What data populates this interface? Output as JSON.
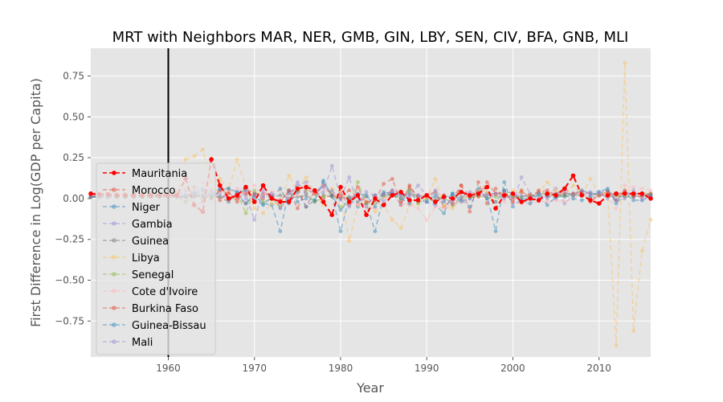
{
  "chart_data": {
    "type": "line",
    "title": "MRT with Neighbors MAR, NER, GMB, GIN, LBY, SEN, CIV, BFA, GNB, MLI",
    "xlabel": "Year",
    "ylabel": "First Difference in Log(GDP per Capita)",
    "xlim": [
      1951,
      2016
    ],
    "ylim": [
      -0.97,
      0.92
    ],
    "xticks": [
      1960,
      1970,
      1980,
      1990,
      2000,
      2010
    ],
    "yticks": [
      -0.75,
      -0.5,
      -0.25,
      0.0,
      0.25,
      0.5,
      0.75
    ],
    "xtick_labels": [
      "1960",
      "1970",
      "1980",
      "1990",
      "2000",
      "2010"
    ],
    "ytick_labels": [
      "−0.75",
      "−0.50",
      "−0.25",
      "0.00",
      "0.25",
      "0.50",
      "0.75"
    ],
    "vline_x": 1960,
    "grid": true,
    "legend_position": "left",
    "series": [
      {
        "name": "Mauritania",
        "color": "#ff0000",
        "highlight": true,
        "start": 1951,
        "values": [
          0.03,
          0.025,
          0.025,
          0.02,
          0.02,
          0.02,
          0.02,
          0.02,
          0.02,
          0.02,
          0.02,
          0.12,
          -0.04,
          -0.08,
          0.24,
          0.08,
          0.0,
          0.02,
          0.07,
          -0.02,
          0.08,
          0.0,
          -0.02,
          -0.02,
          0.06,
          0.07,
          0.05,
          -0.02,
          -0.1,
          0.07,
          -0.02,
          0.02,
          -0.1,
          0.0,
          -0.04,
          0.02,
          0.04,
          -0.01,
          -0.01,
          0.02,
          -0.02,
          0.01,
          0.0,
          0.04,
          0.02,
          0.03,
          0.07,
          -0.06,
          0.02,
          0.03,
          -0.02,
          0.0,
          -0.01,
          0.03,
          0.02,
          0.06,
          0.14,
          0.02,
          -0.01,
          -0.03,
          0.02,
          0.03,
          0.03,
          0.03,
          0.03,
          0.0
        ]
      },
      {
        "name": "Morocco",
        "color": "#e24a33",
        "highlight": false,
        "start": 1951,
        "values": [
          0.02,
          0.02,
          0.02,
          0.02,
          0.02,
          0.02,
          0.02,
          0.02,
          0.02,
          0.02,
          0.02,
          -0.02,
          0.07,
          -0.02,
          0.05,
          -0.01,
          0.04,
          -0.02,
          0.06,
          0.03,
          0.03,
          0.02,
          -0.01,
          0.04,
          0.06,
          -0.05,
          0.05,
          0.0,
          0.02,
          0.03,
          -0.04,
          0.07,
          -0.03,
          0.0,
          0.02,
          0.05,
          -0.04,
          0.08,
          0.0,
          0.02,
          0.04,
          -0.05,
          0.0,
          0.08,
          -0.08,
          0.1,
          -0.03,
          0.06,
          0.01,
          0.0,
          0.05,
          0.0,
          0.05,
          0.02,
          0.03,
          0.06,
          0.02,
          0.04,
          0.03,
          0.02,
          0.04,
          0.02,
          0.04,
          0.01,
          0.03,
          0.02
        ]
      },
      {
        "name": "Niger",
        "color": "#348abd",
        "highlight": false,
        "start": 1951,
        "values": [
          0.01,
          0.01,
          0.01,
          0.01,
          0.01,
          0.01,
          0.01,
          0.01,
          0.01,
          0.01,
          0.01,
          0.02,
          0.03,
          0.05,
          0.0,
          0.05,
          0.06,
          0.03,
          -0.03,
          0.02,
          -0.03,
          -0.04,
          -0.2,
          0.05,
          -0.02,
          0.0,
          -0.01,
          0.1,
          0.02,
          -0.2,
          0.0,
          -0.05,
          -0.03,
          -0.2,
          0.02,
          0.03,
          -0.03,
          0.05,
          -0.02,
          -0.02,
          -0.04,
          -0.09,
          0.03,
          -0.02,
          0.0,
          0.02,
          0.02,
          -0.2,
          0.1,
          -0.05,
          0.0,
          0.0,
          0.03,
          0.02,
          0.0,
          0.02,
          0.03,
          0.05,
          0.03,
          0.03,
          0.05,
          -0.01,
          0.03,
          0.02,
          0.03,
          0.02
        ]
      },
      {
        "name": "Gambia",
        "color": "#988ed5",
        "highlight": false,
        "start": 1951,
        "values": [
          0.02,
          0.02,
          0.02,
          0.02,
          0.02,
          0.02,
          0.02,
          0.02,
          0.02,
          0.02,
          0.02,
          0.05,
          0.04,
          0.06,
          0.02,
          0.03,
          -0.01,
          0.04,
          0.02,
          -0.13,
          0.05,
          0.01,
          -0.06,
          0.03,
          0.08,
          0.1,
          0.03,
          0.04,
          0.2,
          0.0,
          0.13,
          -0.04,
          0.04,
          0.02,
          -0.02,
          0.05,
          0.03,
          0.02,
          0.08,
          0.02,
          -0.03,
          0.02,
          -0.04,
          -0.01,
          0.0,
          0.04,
          0.0,
          0.02,
          0.05,
          -0.03,
          0.13,
          0.03,
          0.0,
          0.02,
          0.06,
          -0.03,
          0.02,
          0.04,
          0.04,
          0.04,
          0.0,
          0.03,
          0.04,
          0.03,
          0.02,
          0.01
        ]
      },
      {
        "name": "Guinea",
        "color": "#777777",
        "highlight": false,
        "start": 1951,
        "values": [
          0.01,
          0.01,
          0.01,
          0.01,
          0.01,
          0.01,
          0.01,
          0.01,
          0.01,
          0.01,
          0.01,
          0.01,
          0.01,
          0.02,
          0.01,
          0.01,
          0.0,
          0.01,
          -0.03,
          0.03,
          0.02,
          0.01,
          0.02,
          0.0,
          0.01,
          0.02,
          -0.02,
          0.02,
          0.01,
          0.0,
          0.01,
          -0.02,
          0.01,
          0.02,
          0.03,
          0.02,
          0.02,
          0.03,
          0.02,
          0.01,
          0.0,
          0.01,
          0.02,
          0.01,
          0.02,
          0.02,
          0.03,
          0.03,
          0.02,
          0.01,
          0.01,
          0.02,
          0.02,
          0.01,
          0.01,
          0.01,
          0.02,
          0.02,
          -0.01,
          0.02,
          0.02,
          0.02,
          0.01,
          0.01,
          0.02,
          0.02
        ]
      },
      {
        "name": "Libya",
        "color": "#fbc15e",
        "highlight": false,
        "start": 1951,
        "values": [
          0.03,
          0.03,
          0.03,
          0.03,
          0.03,
          0.03,
          0.03,
          0.03,
          0.03,
          0.03,
          0.04,
          0.24,
          0.26,
          0.3,
          0.1,
          0.12,
          0.05,
          0.24,
          0.07,
          -0.06,
          -0.09,
          -0.03,
          -0.04,
          0.14,
          0.05,
          0.13,
          0.03,
          -0.04,
          0.06,
          0.05,
          -0.26,
          -0.04,
          -0.02,
          -0.08,
          -0.04,
          -0.13,
          -0.18,
          -0.04,
          -0.03,
          0.0,
          0.12,
          -0.05,
          -0.06,
          0.0,
          0.02,
          0.05,
          0.04,
          -0.02,
          0.02,
          0.05,
          0.04,
          0.02,
          0.04,
          0.1,
          0.05,
          0.02,
          0.08,
          0.02,
          0.12,
          0.03,
          0.03,
          -0.9,
          0.83,
          -0.81,
          -0.32,
          -0.13
        ]
      },
      {
        "name": "Senegal",
        "color": "#8eba42",
        "highlight": false,
        "start": 1951,
        "values": [
          0.01,
          0.01,
          0.01,
          0.01,
          0.01,
          0.01,
          0.01,
          0.01,
          0.01,
          0.01,
          0.01,
          -0.02,
          0.01,
          0.0,
          0.0,
          0.01,
          -0.02,
          0.03,
          -0.09,
          0.05,
          -0.02,
          0.0,
          -0.05,
          0.0,
          0.05,
          0.04,
          -0.02,
          0.01,
          0.04,
          -0.05,
          -0.02,
          0.1,
          -0.03,
          -0.03,
          0.01,
          0.02,
          0.0,
          0.05,
          -0.03,
          0.0,
          -0.02,
          0.01,
          -0.04,
          0.0,
          0.01,
          0.02,
          0.0,
          0.01,
          0.02,
          0.02,
          0.01,
          0.01,
          0.03,
          0.03,
          0.02,
          0.02,
          0.02,
          0.02,
          0.01,
          0.02,
          0.01,
          0.02,
          0.01,
          0.03,
          0.03,
          0.03
        ]
      },
      {
        "name": "Cote d'Ivoire",
        "color": "#ffb5b8",
        "highlight": false,
        "start": 1951,
        "values": [
          0.02,
          0.02,
          0.02,
          0.02,
          0.02,
          0.02,
          0.02,
          0.02,
          0.02,
          0.02,
          0.02,
          0.06,
          0.02,
          0.1,
          0.06,
          0.04,
          0.05,
          0.06,
          0.05,
          0.08,
          0.02,
          0.04,
          0.05,
          0.0,
          0.02,
          0.08,
          0.04,
          0.06,
          0.03,
          0.05,
          -0.02,
          -0.04,
          -0.05,
          -0.06,
          0.0,
          0.02,
          -0.03,
          -0.04,
          -0.06,
          -0.13,
          -0.05,
          -0.06,
          -0.03,
          -0.02,
          0.03,
          0.04,
          0.02,
          0.03,
          -0.02,
          -0.02,
          -0.03,
          -0.03,
          -0.02,
          -0.02,
          -0.01,
          -0.02,
          0.0,
          0.02,
          0.01,
          0.01,
          0.01,
          -0.06,
          0.08,
          0.07,
          0.06,
          0.05
        ]
      },
      {
        "name": "Burkina Faso",
        "color": "#e24a33",
        "highlight": false,
        "start": 1951,
        "values": [
          0.01,
          0.01,
          0.01,
          0.01,
          0.01,
          0.01,
          0.01,
          0.01,
          0.01,
          0.01,
          0.01,
          0.01,
          0.02,
          0.01,
          0.0,
          0.05,
          0.03,
          0.0,
          0.03,
          0.02,
          0.0,
          0.01,
          -0.02,
          0.05,
          -0.06,
          0.06,
          0.03,
          0.08,
          0.02,
          0.01,
          0.05,
          0.01,
          -0.02,
          -0.01,
          0.09,
          0.12,
          -0.02,
          0.07,
          0.01,
          0.02,
          -0.02,
          0.02,
          -0.03,
          0.08,
          0.01,
          0.01,
          0.1,
          0.03,
          0.04,
          -0.02,
          0.04,
          0.02,
          0.04,
          0.05,
          0.02,
          0.03,
          0.03,
          0.04,
          -0.02,
          0.02,
          0.04,
          -0.01,
          0.05,
          0.02,
          0.01,
          0.03
        ]
      },
      {
        "name": "Guinea-Bissau",
        "color": "#348abd",
        "highlight": false,
        "start": 1951,
        "values": [
          0.01,
          0.01,
          0.01,
          0.01,
          0.01,
          0.01,
          0.01,
          0.01,
          0.01,
          0.01,
          0.01,
          0.01,
          0.02,
          0.01,
          0.02,
          0.06,
          0.06,
          0.04,
          0.05,
          0.0,
          -0.04,
          0.01,
          0.06,
          -0.03,
          0.04,
          -0.05,
          -0.01,
          0.11,
          0.02,
          -0.07,
          -0.01,
          0.03,
          0.02,
          -0.05,
          0.04,
          0.03,
          0.0,
          -0.03,
          -0.01,
          -0.02,
          0.02,
          -0.02,
          0.03,
          -0.01,
          -0.05,
          0.06,
          0.0,
          -0.02,
          0.05,
          0.03,
          -0.01,
          -0.03,
          0.03,
          -0.04,
          0.01,
          0.02,
          0.0,
          -0.01,
          0.01,
          0.04,
          0.06,
          -0.03,
          0.03,
          -0.01,
          -0.01,
          0.02
        ]
      },
      {
        "name": "Mali",
        "color": "#988ed5",
        "highlight": false,
        "start": 1951,
        "values": [
          0.02,
          0.02,
          0.02,
          0.02,
          0.02,
          0.02,
          0.02,
          0.02,
          0.02,
          0.02,
          0.02,
          0.02,
          0.03,
          0.02,
          0.04,
          0.01,
          -0.02,
          0.03,
          0.0,
          0.02,
          0.01,
          0.03,
          -0.06,
          0.0,
          0.1,
          0.03,
          0.05,
          0.07,
          0.05,
          -0.01,
          -0.05,
          0.02,
          -0.05,
          0.02,
          0.03,
          0.04,
          0.02,
          0.01,
          0.02,
          -0.02,
          0.05,
          -0.01,
          -0.02,
          0.0,
          0.04,
          0.03,
          0.02,
          0.03,
          0.0,
          0.03,
          0.02,
          0.01,
          0.03,
          0.0,
          0.03,
          0.04,
          0.02,
          0.03,
          0.02,
          0.03,
          0.01,
          -0.01,
          0.0,
          0.05,
          -0.01,
          0.01
        ]
      }
    ]
  }
}
